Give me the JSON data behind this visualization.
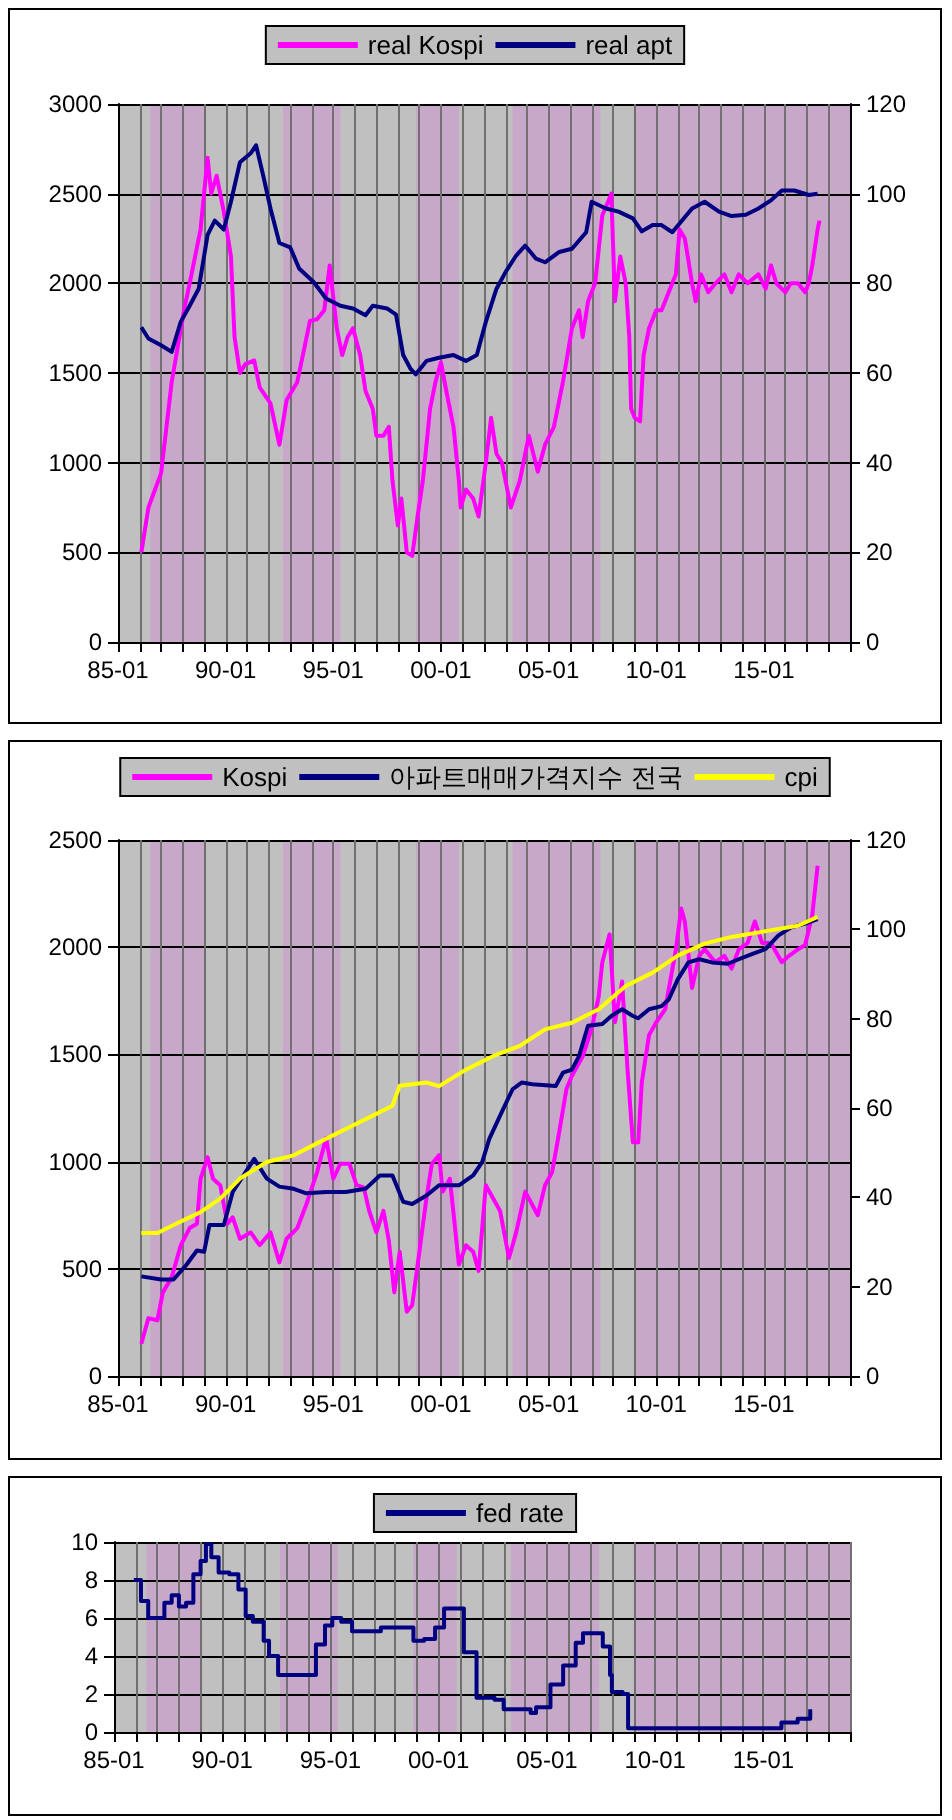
{
  "chart_data": [
    {
      "type": "line",
      "legend": "top",
      "grid": true,
      "marker": "none",
      "xlim": [
        "1985-01",
        "2019-01"
      ],
      "ylim": [
        0,
        3000
      ],
      "yticks": [
        0,
        500,
        1000,
        1500,
        2000,
        2500,
        3000
      ],
      "y2lim": [
        0,
        120
      ],
      "y2ticks": [
        0,
        20,
        40,
        60,
        80,
        100,
        120
      ],
      "xticks": [
        {
          "value": "1985-01",
          "label": "85-01"
        },
        {
          "value": "1986-01",
          "label": null
        },
        {
          "value": "1987-01",
          "label": null
        },
        {
          "value": "1988-01",
          "label": null
        },
        {
          "value": "1989-01",
          "label": null
        },
        {
          "value": "1990-01",
          "label": "90-01"
        },
        {
          "value": "1991-01",
          "label": null
        },
        {
          "value": "1992-01",
          "label": null
        },
        {
          "value": "1993-01",
          "label": null
        },
        {
          "value": "1994-01",
          "label": null
        },
        {
          "value": "1995-01",
          "label": "95-01"
        },
        {
          "value": "1996-01",
          "label": null
        },
        {
          "value": "1997-01",
          "label": null
        },
        {
          "value": "1998-01",
          "label": null
        },
        {
          "value": "1999-01",
          "label": null
        },
        {
          "value": "2000-01",
          "label": "00-01"
        },
        {
          "value": "2001-01",
          "label": null
        },
        {
          "value": "2002-01",
          "label": null
        },
        {
          "value": "2003-01",
          "label": null
        },
        {
          "value": "2004-01",
          "label": null
        },
        {
          "value": "2005-01",
          "label": "05-01"
        },
        {
          "value": "2006-01",
          "label": null
        },
        {
          "value": "2007-01",
          "label": null
        },
        {
          "value": "2008-01",
          "label": null
        },
        {
          "value": "2009-01",
          "label": null
        },
        {
          "value": "2010-01",
          "label": "10-01"
        },
        {
          "value": "2011-01",
          "label": null
        },
        {
          "value": "2012-01",
          "label": null
        },
        {
          "value": "2013-01",
          "label": null
        },
        {
          "value": "2014-01",
          "label": null
        },
        {
          "value": "2015-01",
          "label": "15-01"
        },
        {
          "value": "2016-01",
          "label": null
        },
        {
          "value": "2017-01",
          "label": null
        },
        {
          "value": "2018-01",
          "label": null
        },
        {
          "value": "2019-01",
          "label": null
        }
      ],
      "bands": [
        {
          "axis": "x",
          "from": "1986-07",
          "to": "1989-02",
          "color": "#c8a8c8"
        },
        {
          "axis": "x",
          "from": "1992-09",
          "to": "1995-05",
          "color": "#c8a8c8"
        },
        {
          "axis": "x",
          "from": "1998-11",
          "to": "2000-11",
          "color": "#c8a8c8"
        },
        {
          "axis": "x",
          "from": "2003-05",
          "to": "2007-06",
          "color": "#c8a8c8"
        },
        {
          "axis": "x",
          "from": "2009-01",
          "to": "2019-01",
          "color": "#c8a8c8"
        }
      ],
      "series": [
        {
          "name": "real Kospi",
          "color": "#ff00ff",
          "x": [
            "1986-02",
            "1986-06",
            "1987-01",
            "1987-07",
            "1988-02",
            "1988-05",
            "1988-11",
            "1989-03",
            "1989-05",
            "1989-08",
            "1989-12",
            "1990-04",
            "1990-06",
            "1990-09",
            "1990-12",
            "1991-05",
            "1991-08",
            "1992-02",
            "1992-07",
            "1992-11",
            "1993-05",
            "1993-12",
            "1994-04",
            "1994-08",
            "1994-11",
            "1995-03",
            "1995-06",
            "1995-09",
            "1995-12",
            "1996-04",
            "1996-07",
            "1996-11",
            "1997-01",
            "1997-05",
            "1997-08",
            "1997-10",
            "1998-01",
            "1998-03",
            "1998-06",
            "1998-09",
            "1998-12",
            "1999-03",
            "1999-07",
            "1999-10",
            "2000-01",
            "2000-04",
            "2000-08",
            "2000-11",
            "2000-12",
            "2001-03",
            "2001-07",
            "2001-10",
            "2002-02",
            "2002-05",
            "2002-08",
            "2002-11",
            "2003-04",
            "2003-09",
            "2004-02",
            "2004-07",
            "2004-11",
            "2005-04",
            "2005-09",
            "2006-02",
            "2006-06",
            "2006-08",
            "2006-11",
            "2007-03",
            "2007-07",
            "2007-10",
            "2007-12",
            "2008-02",
            "2008-05",
            "2008-08",
            "2008-10",
            "2008-11",
            "2009-01",
            "2009-04",
            "2009-06",
            "2009-09",
            "2010-01",
            "2010-04",
            "2010-08",
            "2010-12",
            "2011-02",
            "2011-05",
            "2011-09",
            "2011-11",
            "2012-02",
            "2012-06",
            "2012-10",
            "2013-03",
            "2013-07",
            "2013-11",
            "2014-04",
            "2014-10",
            "2015-02",
            "2015-05",
            "2015-08",
            "2016-01",
            "2016-04",
            "2016-08",
            "2016-12",
            "2017-02",
            "2017-04",
            "2017-07",
            "2017-08"
          ],
          "values": [
            500,
            750,
            940,
            1450,
            1860,
            2000,
            2300,
            2700,
            2500,
            2600,
            2400,
            2150,
            1700,
            1500,
            1550,
            1570,
            1420,
            1330,
            1100,
            1350,
            1450,
            1790,
            1800,
            1850,
            2100,
            1750,
            1600,
            1700,
            1750,
            1600,
            1400,
            1300,
            1150,
            1150,
            1200,
            900,
            650,
            800,
            500,
            480,
            700,
            900,
            1300,
            1450,
            1560,
            1400,
            1200,
            900,
            750,
            850,
            800,
            700,
            1000,
            1250,
            1050,
            1000,
            750,
            900,
            1150,
            950,
            1100,
            1200,
            1450,
            1750,
            1850,
            1700,
            1900,
            2000,
            2380,
            2450,
            2500,
            1900,
            2150,
            2000,
            1700,
            1300,
            1250,
            1230,
            1600,
            1750,
            1850,
            1850,
            1950,
            2050,
            2300,
            2250,
            2000,
            1900,
            2050,
            1950,
            2000,
            2050,
            1950,
            2050,
            2000,
            2050,
            1970,
            2100,
            2000,
            1950,
            2000,
            2000,
            1950,
            2000,
            2100,
            2300,
            2350
          ]
        },
        {
          "name": "real apt",
          "color": "#000080",
          "axis": "y2",
          "x": [
            "1986-02",
            "1986-06",
            "1987-01",
            "1987-07",
            "1987-12",
            "1988-05",
            "1988-10",
            "1989-03",
            "1989-07",
            "1989-12",
            "1990-04",
            "1990-09",
            "1991-03",
            "1991-06",
            "1991-10",
            "1992-02",
            "1992-07",
            "1993-01",
            "1993-06",
            "1994-02",
            "1994-09",
            "1995-05",
            "1995-12",
            "1996-07",
            "1996-11",
            "1997-07",
            "1997-12",
            "1998-04",
            "1998-08",
            "1998-11",
            "1999-05",
            "1999-12",
            "2000-08",
            "2001-03",
            "2001-09",
            "2002-02",
            "2002-08",
            "2003-01",
            "2003-07",
            "2003-12",
            "2004-06",
            "2004-11",
            "2005-07",
            "2006-02",
            "2006-10",
            "2007-01",
            "2007-09",
            "2008-04",
            "2008-12",
            "2009-05",
            "2009-11",
            "2010-04",
            "2010-10",
            "2011-03",
            "2011-09",
            "2012-04",
            "2012-12",
            "2013-07",
            "2014-03",
            "2014-10",
            "2015-05",
            "2015-11",
            "2016-06",
            "2017-02",
            "2017-07"
          ],
          "values": [
            70.2,
            67.7,
            66.2,
            64.7,
            71.4,
            75,
            78.8,
            90.8,
            94,
            92,
            98.2,
            107,
            109,
            110.8,
            104,
            96.7,
            89,
            88,
            83.3,
            80.3,
            76.6,
            75,
            74.4,
            72.9,
            75,
            74.4,
            73,
            64,
            61,
            59.7,
            62.7,
            63.4,
            64,
            62.7,
            64,
            71.4,
            78.8,
            82.5,
            86.2,
            88.4,
            85.5,
            84.7,
            87,
            87.7,
            91.4,
            98.2,
            96.7,
            96,
            94.5,
            91.6,
            93,
            93,
            91.4,
            93.8,
            96.7,
            98.2,
            96,
            95,
            95.3,
            96.7,
            98.5,
            100.7,
            100.7,
            99.7,
            100
          ]
        }
      ]
    },
    {
      "type": "line",
      "legend": "top",
      "grid": true,
      "marker": "none",
      "xlim": [
        "1985-01",
        "2019-01"
      ],
      "ylim": [
        0,
        2500
      ],
      "yticks": [
        0,
        500,
        1000,
        1500,
        2000,
        2500
      ],
      "y2lim": [
        0,
        120
      ],
      "y2ticks": [
        0,
        20,
        40,
        60,
        80,
        100,
        120
      ],
      "xticks": [
        {
          "value": "1985-01",
          "label": "85-01"
        },
        {
          "value": "1986-01",
          "label": null
        },
        {
          "value": "1987-01",
          "label": null
        },
        {
          "value": "1988-01",
          "label": null
        },
        {
          "value": "1989-01",
          "label": null
        },
        {
          "value": "1990-01",
          "label": "90-01"
        },
        {
          "value": "1991-01",
          "label": null
        },
        {
          "value": "1992-01",
          "label": null
        },
        {
          "value": "1993-01",
          "label": null
        },
        {
          "value": "1994-01",
          "label": null
        },
        {
          "value": "1995-01",
          "label": "95-01"
        },
        {
          "value": "1996-01",
          "label": null
        },
        {
          "value": "1997-01",
          "label": null
        },
        {
          "value": "1998-01",
          "label": null
        },
        {
          "value": "1999-01",
          "label": null
        },
        {
          "value": "2000-01",
          "label": "00-01"
        },
        {
          "value": "2001-01",
          "label": null
        },
        {
          "value": "2002-01",
          "label": null
        },
        {
          "value": "2003-01",
          "label": null
        },
        {
          "value": "2004-01",
          "label": null
        },
        {
          "value": "2005-01",
          "label": "05-01"
        },
        {
          "value": "2006-01",
          "label": null
        },
        {
          "value": "2007-01",
          "label": null
        },
        {
          "value": "2008-01",
          "label": null
        },
        {
          "value": "2009-01",
          "label": null
        },
        {
          "value": "2010-01",
          "label": "10-01"
        },
        {
          "value": "2011-01",
          "label": null
        },
        {
          "value": "2012-01",
          "label": null
        },
        {
          "value": "2013-01",
          "label": null
        },
        {
          "value": "2014-01",
          "label": null
        },
        {
          "value": "2015-01",
          "label": "15-01"
        },
        {
          "value": "2016-01",
          "label": null
        },
        {
          "value": "2017-01",
          "label": null
        },
        {
          "value": "2018-01",
          "label": null
        },
        {
          "value": "2019-01",
          "label": null
        }
      ],
      "bands": [
        {
          "axis": "x",
          "from": "1986-07",
          "to": "1989-02",
          "color": "#c8a8c8"
        },
        {
          "axis": "x",
          "from": "1992-09",
          "to": "1995-05",
          "color": "#c8a8c8"
        },
        {
          "axis": "x",
          "from": "1998-11",
          "to": "2000-11",
          "color": "#c8a8c8"
        },
        {
          "axis": "x",
          "from": "2003-05",
          "to": "2007-06",
          "color": "#c8a8c8"
        },
        {
          "axis": "x",
          "from": "2009-01",
          "to": "2019-01",
          "color": "#c8a8c8"
        }
      ],
      "series": [
        {
          "name": "Kospi",
          "color": "#ff00ff",
          "x": [
            "1986-02",
            "1986-06",
            "1986-11",
            "1987-02",
            "1987-07",
            "1987-12",
            "1988-05",
            "1988-09",
            "1988-11",
            "1989-03",
            "1989-06",
            "1989-10",
            "1990-02",
            "1990-05",
            "1990-09",
            "1991-03",
            "1991-08",
            "1992-02",
            "1992-07",
            "1992-11",
            "1993-05",
            "1993-10",
            "1994-04",
            "1994-09",
            "1995-01",
            "1995-05",
            "1995-10",
            "1996-02",
            "1996-06",
            "1996-09",
            "1997-01",
            "1997-05",
            "1997-08",
            "1997-11",
            "1998-02",
            "1998-06",
            "1998-09",
            "1999-01",
            "1999-05",
            "1999-08",
            "1999-12",
            "2000-02",
            "2000-06",
            "2000-11",
            "2001-03",
            "2001-07",
            "2001-10",
            "2002-02",
            "2002-06",
            "2002-10",
            "2003-03",
            "2003-07",
            "2003-12",
            "2004-07",
            "2004-11",
            "2005-03",
            "2005-07",
            "2005-11",
            "2006-02",
            "2006-08",
            "2007-01",
            "2007-05",
            "2007-07",
            "2007-11",
            "2008-02",
            "2008-06",
            "2008-09",
            "2008-12",
            "2009-03",
            "2009-05",
            "2009-09",
            "2010-01",
            "2010-06",
            "2010-12",
            "2011-03",
            "2011-05",
            "2011-09",
            "2012-01",
            "2012-04",
            "2012-10",
            "2013-03",
            "2013-07",
            "2013-11",
            "2014-04",
            "2014-08",
            "2014-12",
            "2015-05",
            "2015-11",
            "2016-03",
            "2016-08",
            "2016-12",
            "2017-04",
            "2017-07"
          ],
          "values": [
            150,
            270,
            260,
            390,
            460,
            610,
            690,
            710,
            920,
            1020,
            920,
            890,
            710,
            740,
            640,
            670,
            610,
            670,
            530,
            640,
            690,
            800,
            950,
            1110,
            920,
            990,
            990,
            890,
            880,
            770,
            670,
            770,
            630,
            390,
            580,
            300,
            330,
            580,
            830,
            990,
            1030,
            860,
            920,
            520,
            610,
            580,
            490,
            890,
            830,
            770,
            550,
            670,
            860,
            750,
            890,
            950,
            1140,
            1340,
            1400,
            1490,
            1620,
            1770,
            1930,
            2060,
            1650,
            1840,
            1430,
            1090,
            1090,
            1370,
            1590,
            1650,
            1710,
            1990,
            2180,
            2120,
            1810,
            1960,
            1990,
            1930,
            1960,
            1900,
            1990,
            2020,
            2120,
            2020,
            2020,
            1930,
            1960,
            1990,
            2010,
            2150,
            2380
          ]
        },
        {
          "name": "아파트매매가격지수 전국",
          "color": "#000080",
          "axis": "y2",
          "x": [
            "1986-02",
            "1987-01",
            "1987-08",
            "1988-03",
            "1988-09",
            "1989-01",
            "1989-04",
            "1989-12",
            "1990-05",
            "1991-05",
            "1991-12",
            "1992-07",
            "1993-03",
            "1993-10",
            "1994-09",
            "1995-08",
            "1996-07",
            "1997-03",
            "1997-10",
            "1998-04",
            "1998-09",
            "1999-05",
            "1999-12",
            "2000-11",
            "2001-07",
            "2001-12",
            "2002-04",
            "2002-10",
            "2003-05",
            "2003-10",
            "2004-04",
            "2005-05",
            "2005-09",
            "2006-02",
            "2006-06",
            "2006-11",
            "2007-07",
            "2007-12",
            "2008-06",
            "2008-12",
            "2009-03",
            "2009-09",
            "2010-04",
            "2010-08",
            "2011-01",
            "2011-07",
            "2012-01",
            "2012-08",
            "2013-05",
            "2013-11",
            "2014-06",
            "2015-02",
            "2015-09",
            "2016-04",
            "2016-12",
            "2017-07"
          ],
          "values": [
            22.3,
            21.6,
            21.6,
            24.8,
            28.1,
            27.8,
            33.8,
            33.8,
            41.2,
            48.6,
            44.2,
            42.4,
            41.9,
            40.9,
            41.2,
            41.2,
            41.9,
            44.9,
            44.9,
            39,
            38.5,
            40.4,
            42.7,
            42.7,
            44.9,
            47.9,
            53.1,
            58.3,
            64.2,
            65.7,
            65.3,
            64.9,
            67.9,
            68.6,
            71.6,
            78.4,
            78.8,
            80.6,
            82.1,
            80.6,
            80.1,
            82.1,
            82.8,
            84.3,
            88.8,
            92.6,
            93.3,
            92.6,
            92.3,
            93.3,
            94.4,
            95.6,
            98.6,
            100.4,
            101.3,
            102.3
          ]
        },
        {
          "name": "cpi",
          "color": "#ffff00",
          "axis": "y2",
          "x": [
            "1986-02",
            "1986-11",
            "1987-08",
            "1988-11",
            "1989-10",
            "1990-09",
            "1991-12",
            "1993-03",
            "1994-05",
            "1995-08",
            "1996-11",
            "1997-10",
            "1998-02",
            "1999-05",
            "1999-12",
            "2001-03",
            "2002-06",
            "2003-09",
            "2004-11",
            "2006-02",
            "2007-05",
            "2008-08",
            "2009-11",
            "2011-01",
            "2012-04",
            "2013-07",
            "2015-02",
            "2016-08",
            "2017-07"
          ],
          "values": [
            32,
            32,
            33.8,
            36.7,
            39.7,
            44.2,
            47.9,
            49.4,
            52.3,
            55.3,
            58.3,
            60.5,
            65,
            65.7,
            64.9,
            68.6,
            71.6,
            73.9,
            77.6,
            79.1,
            82.1,
            87.3,
            90.3,
            94.1,
            96.8,
            98.3,
            99.6,
            100.8,
            102.8
          ]
        }
      ]
    },
    {
      "type": "step",
      "legend": "top",
      "grid": true,
      "marker": "none",
      "xlim": [
        "1985-01",
        "2019-01"
      ],
      "ylim": [
        0,
        10
      ],
      "yticks": [
        0,
        2,
        4,
        6,
        8,
        10
      ],
      "xticks": [
        {
          "value": "1985-01",
          "label": "85-01"
        },
        {
          "value": "1986-01",
          "label": null
        },
        {
          "value": "1987-01",
          "label": null
        },
        {
          "value": "1988-01",
          "label": null
        },
        {
          "value": "1989-01",
          "label": null
        },
        {
          "value": "1990-01",
          "label": "90-01"
        },
        {
          "value": "1991-01",
          "label": null
        },
        {
          "value": "1992-01",
          "label": null
        },
        {
          "value": "1993-01",
          "label": null
        },
        {
          "value": "1994-01",
          "label": null
        },
        {
          "value": "1995-01",
          "label": "95-01"
        },
        {
          "value": "1996-01",
          "label": null
        },
        {
          "value": "1997-01",
          "label": null
        },
        {
          "value": "1998-01",
          "label": null
        },
        {
          "value": "1999-01",
          "label": null
        },
        {
          "value": "2000-01",
          "label": "00-01"
        },
        {
          "value": "2001-01",
          "label": null
        },
        {
          "value": "2002-01",
          "label": null
        },
        {
          "value": "2003-01",
          "label": null
        },
        {
          "value": "2004-01",
          "label": null
        },
        {
          "value": "2005-01",
          "label": "05-01"
        },
        {
          "value": "2006-01",
          "label": null
        },
        {
          "value": "2007-01",
          "label": null
        },
        {
          "value": "2008-01",
          "label": null
        },
        {
          "value": "2009-01",
          "label": null
        },
        {
          "value": "2010-01",
          "label": "10-01"
        },
        {
          "value": "2011-01",
          "label": null
        },
        {
          "value": "2012-01",
          "label": null
        },
        {
          "value": "2013-01",
          "label": null
        },
        {
          "value": "2014-01",
          "label": null
        },
        {
          "value": "2015-01",
          "label": "15-01"
        },
        {
          "value": "2016-01",
          "label": null
        },
        {
          "value": "2017-01",
          "label": null
        },
        {
          "value": "2018-01",
          "label": null
        },
        {
          "value": "2019-01",
          "label": null
        }
      ],
      "bands": [
        {
          "axis": "x",
          "from": "1986-07",
          "to": "1989-02",
          "color": "#c8a8c8"
        },
        {
          "axis": "x",
          "from": "1992-09",
          "to": "1995-05",
          "color": "#c8a8c8"
        },
        {
          "axis": "x",
          "from": "1998-11",
          "to": "2000-11",
          "color": "#c8a8c8"
        },
        {
          "axis": "x",
          "from": "2003-05",
          "to": "2007-06",
          "color": "#c8a8c8"
        },
        {
          "axis": "x",
          "from": "2009-01",
          "to": "2019-01",
          "color": "#c8a8c8"
        }
      ],
      "series": [
        {
          "name": "fed rate",
          "color": "#000080",
          "x": [
            "1985-12",
            "1986-04",
            "1986-08",
            "1987-01",
            "1987-05",
            "1987-09",
            "1988-01",
            "1988-05",
            "1988-09",
            "1989-01",
            "1989-04",
            "1989-07",
            "1989-11",
            "1990-05",
            "1990-10",
            "1991-02",
            "1991-06",
            "1991-12",
            "1992-03",
            "1992-08",
            "1993-11",
            "1994-05",
            "1994-10",
            "1995-02",
            "1995-07",
            "1996-01",
            "1997-02",
            "1997-05",
            "1998-07",
            "1998-11",
            "1999-05",
            "1999-11",
            "2000-04",
            "2000-10",
            "2001-03",
            "2001-10",
            "2002-08",
            "2003-01",
            "2004-04",
            "2004-07",
            "2005-03",
            "2005-10",
            "2006-05",
            "2006-09",
            "2007-06",
            "2007-08",
            "2007-12",
            "2008-01",
            "2008-07",
            "2008-10",
            "2015-07",
            "2015-11",
            "2016-08",
            "2017-03"
          ],
          "values": [
            8,
            6.9,
            6,
            6,
            6.8,
            7.2,
            6.6,
            6.8,
            8.3,
            9,
            9.9,
            9.2,
            8.4,
            8.3,
            7.5,
            6.1,
            5.8,
            4.8,
            4,
            3,
            3,
            4.6,
            5.6,
            6,
            5.8,
            5.3,
            5.3,
            5.5,
            5.5,
            4.8,
            4.9,
            5.5,
            6.5,
            6.5,
            4.2,
            1.8,
            1.7,
            1.2,
            1,
            1.3,
            2.5,
            3.5,
            4.7,
            5.2,
            5.2,
            4.5,
            3,
            2.1,
            2,
            0.2,
            0.2,
            0.5,
            0.7,
            1.2
          ]
        }
      ]
    }
  ]
}
